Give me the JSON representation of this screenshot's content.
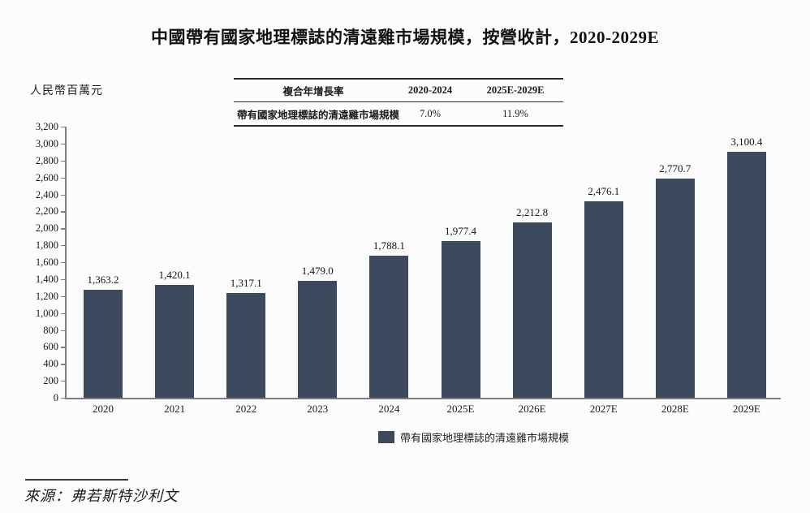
{
  "title": "中國帶有國家地理標誌的清遠雞市場規模，按營收計，2020-2029E",
  "unit_label": "人民幣百萬元",
  "cagr_table": {
    "header": [
      "複合年增長率",
      "2020-2024",
      "2025E-2029E"
    ],
    "rows": [
      {
        "label": "帶有國家地理標誌的清遠雞市場規模",
        "cagr_2020_2024": "7.0%",
        "cagr_2025e_2029e": "11.9%"
      }
    ]
  },
  "chart_data": {
    "type": "bar",
    "title": "中國帶有國家地理標誌的清遠雞市場規模，按營收計，2020-2029E",
    "xlabel": "",
    "ylabel": "人民幣百萬元",
    "categories": [
      "2020",
      "2021",
      "2022",
      "2023",
      "2024",
      "2025E",
      "2026E",
      "2027E",
      "2028E",
      "2029E"
    ],
    "values": [
      1363.2,
      1420.1,
      1317.1,
      1479.0,
      1788.1,
      1977.4,
      2212.8,
      2476.1,
      2770.7,
      3100.4
    ],
    "value_labels": [
      "1,363.2",
      "1,420.1",
      "1,317.1",
      "1,479.0",
      "1,788.1",
      "1,977.4",
      "2,212.8",
      "2,476.1",
      "2,770.7",
      "3,100.4"
    ],
    "ylim": [
      0,
      3200
    ],
    "ytick_step": 200,
    "grid": false,
    "legend_position": "bottom",
    "series_name": "帶有國家地理標誌的清遠雞市場規模",
    "bar_color": "#3c4a5e"
  },
  "legend": {
    "label": "帶有國家地理標誌的清遠雞市場規模",
    "swatch_color": "#3c4a5e"
  },
  "source": "來源：弗若斯特沙利文",
  "colors": {
    "bar": "#3c4a5e",
    "axis": "#7d7d7d",
    "text": "#1a1a1a",
    "background": "#fbfbfb"
  }
}
